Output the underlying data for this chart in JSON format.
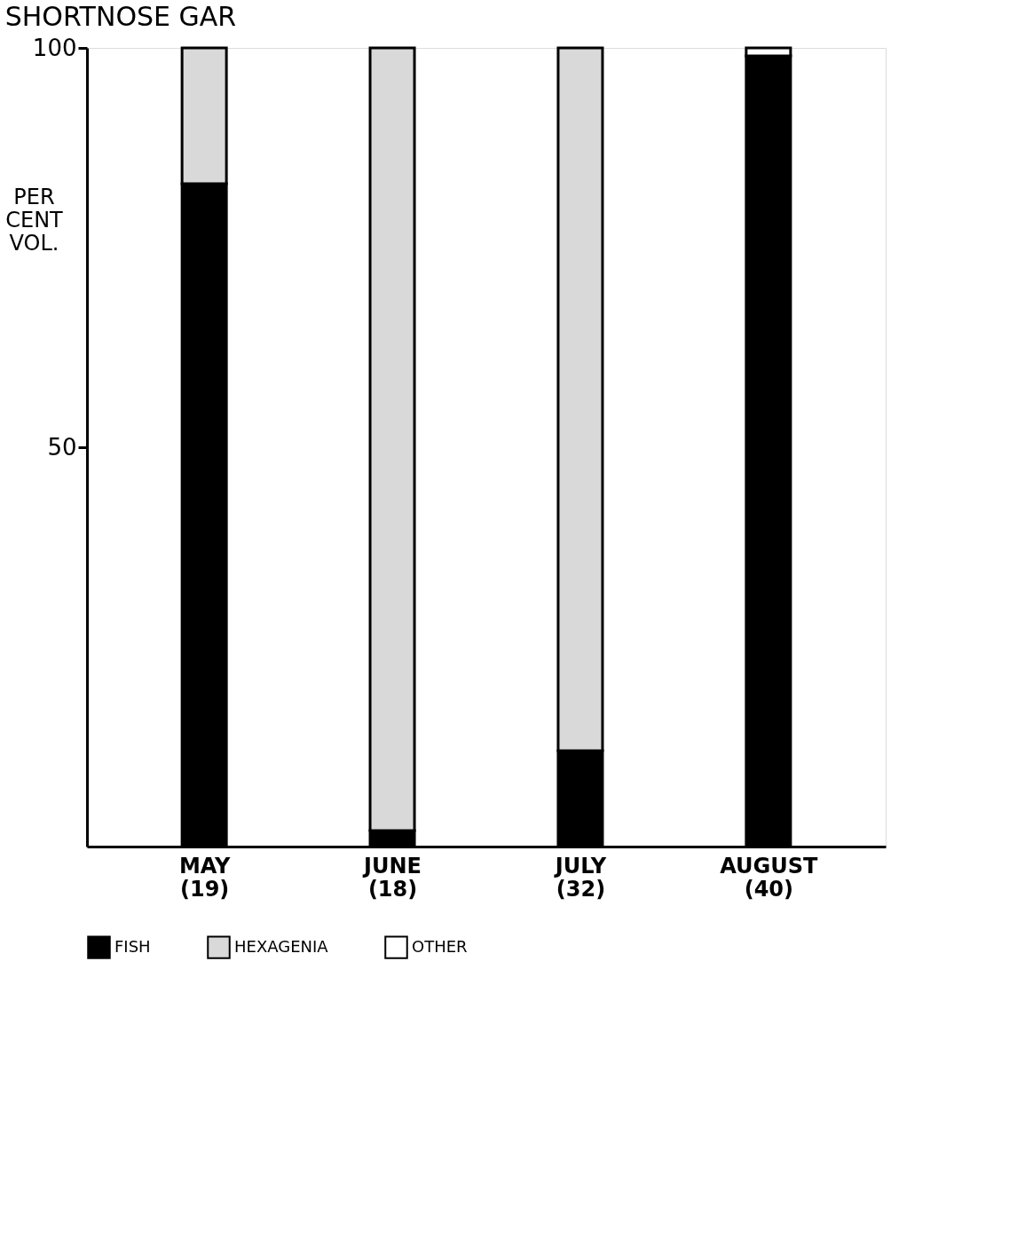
{
  "chart_data": {
    "type": "bar",
    "title": "SHORTNOSE GAR",
    "ylabel": "PER\nCENT\nVOL.",
    "categories": [
      "MAY\n(19)",
      "JUNE\n(18)",
      "JULY\n(32)",
      "AUGUST\n(40)"
    ],
    "stacked": true,
    "ylim": [
      0,
      100
    ],
    "yticks": [
      50,
      100
    ],
    "grid": false,
    "legend": "bottom",
    "series": [
      {
        "name": "FISH",
        "color": "#000000",
        "values": [
          83,
          2,
          12,
          99
        ]
      },
      {
        "name": "HEXAGENIA",
        "color": "#d9d9d9",
        "values": [
          17,
          98,
          88,
          0
        ]
      },
      {
        "name": "OTHER",
        "color": "#ffffff",
        "values": [
          0,
          0,
          0,
          1
        ]
      }
    ]
  }
}
